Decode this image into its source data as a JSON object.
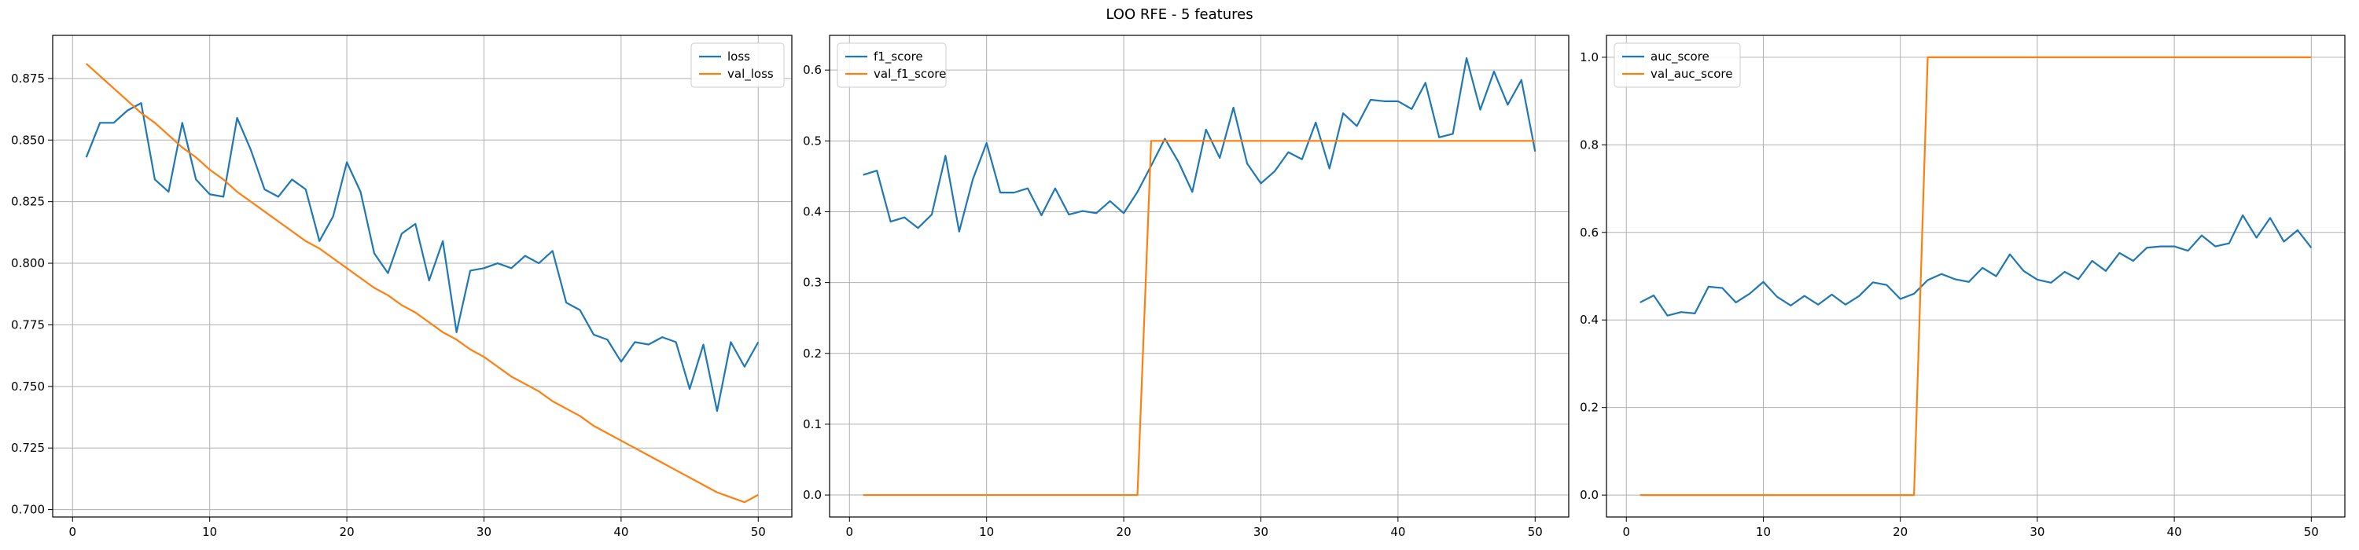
{
  "figure": {
    "title": "LOO RFE - 5 features"
  },
  "colors": {
    "blue": "#1f77b4",
    "orange": "#ff7f0e",
    "grid": "#b0b0b0",
    "axis": "#000000"
  },
  "chart_data": [
    {
      "type": "line",
      "title": "",
      "xlabel": "",
      "ylabel": "",
      "xlim": [
        -1.45,
        52.45
      ],
      "ylim": [
        0.697,
        0.8925
      ],
      "xticks": [
        0,
        10,
        20,
        30,
        40,
        50
      ],
      "yticks": [
        0.7,
        0.725,
        0.75,
        0.775,
        0.8,
        0.825,
        0.85,
        0.875
      ],
      "ytick_decimals": 3,
      "grid": true,
      "legend_position": "upper right",
      "x": [
        1,
        2,
        3,
        4,
        5,
        6,
        7,
        8,
        9,
        10,
        11,
        12,
        13,
        14,
        15,
        16,
        17,
        18,
        19,
        20,
        21,
        22,
        23,
        24,
        25,
        26,
        27,
        28,
        29,
        30,
        31,
        32,
        33,
        34,
        35,
        36,
        37,
        38,
        39,
        40,
        41,
        42,
        43,
        44,
        45,
        46,
        47,
        48,
        49,
        50
      ],
      "series": [
        {
          "name": "loss",
          "color": "#1f77b4",
          "values": [
            0.843,
            0.857,
            0.857,
            0.862,
            0.865,
            0.834,
            0.829,
            0.857,
            0.834,
            0.828,
            0.827,
            0.859,
            0.846,
            0.83,
            0.827,
            0.834,
            0.83,
            0.809,
            0.819,
            0.841,
            0.829,
            0.804,
            0.796,
            0.812,
            0.816,
            0.793,
            0.809,
            0.772,
            0.797,
            0.798,
            0.8,
            0.798,
            0.803,
            0.8,
            0.805,
            0.784,
            0.781,
            0.771,
            0.769,
            0.76,
            0.768,
            0.767,
            0.77,
            0.768,
            0.749,
            0.767,
            0.74,
            0.768,
            0.758,
            0.768
          ]
        },
        {
          "name": "val_loss",
          "color": "#ff7f0e",
          "values": [
            0.881,
            0.876,
            0.871,
            0.866,
            0.861,
            0.857,
            0.852,
            0.847,
            0.843,
            0.838,
            0.834,
            0.829,
            0.825,
            0.821,
            0.817,
            0.813,
            0.809,
            0.806,
            0.802,
            0.798,
            0.794,
            0.79,
            0.787,
            0.783,
            0.78,
            0.776,
            0.772,
            0.769,
            0.765,
            0.762,
            0.758,
            0.754,
            0.751,
            0.748,
            0.744,
            0.741,
            0.738,
            0.734,
            0.731,
            0.728,
            0.725,
            0.722,
            0.719,
            0.716,
            0.713,
            0.71,
            0.707,
            0.705,
            0.703,
            0.706
          ]
        }
      ]
    },
    {
      "type": "line",
      "title": "",
      "xlabel": "",
      "ylabel": "",
      "xlim": [
        -1.45,
        52.45
      ],
      "ylim": [
        -0.031,
        0.649
      ],
      "xticks": [
        0,
        10,
        20,
        30,
        40,
        50
      ],
      "yticks": [
        0.0,
        0.1,
        0.2,
        0.3,
        0.4,
        0.5,
        0.6
      ],
      "ytick_decimals": 1,
      "grid": true,
      "legend_position": "upper left",
      "x": [
        1,
        2,
        3,
        4,
        5,
        6,
        7,
        8,
        9,
        10,
        11,
        12,
        13,
        14,
        15,
        16,
        17,
        18,
        19,
        20,
        21,
        22,
        23,
        24,
        25,
        26,
        27,
        28,
        29,
        30,
        31,
        32,
        33,
        34,
        35,
        36,
        37,
        38,
        39,
        40,
        41,
        42,
        43,
        44,
        45,
        46,
        47,
        48,
        49,
        50
      ],
      "series": [
        {
          "name": "f1_score",
          "color": "#1f77b4",
          "values": [
            0.452,
            0.458,
            0.386,
            0.392,
            0.377,
            0.396,
            0.479,
            0.372,
            0.446,
            0.497,
            0.427,
            0.427,
            0.433,
            0.395,
            0.433,
            0.396,
            0.401,
            0.398,
            0.415,
            0.398,
            0.428,
            0.465,
            0.503,
            0.47,
            0.428,
            0.516,
            0.476,
            0.547,
            0.468,
            0.44,
            0.457,
            0.484,
            0.474,
            0.526,
            0.461,
            0.539,
            0.521,
            0.558,
            0.556,
            0.556,
            0.545,
            0.582,
            0.505,
            0.51,
            0.617,
            0.544,
            0.598,
            0.551,
            0.586,
            0.485
          ]
        },
        {
          "name": "val_f1_score",
          "color": "#ff7f0e",
          "values": [
            0,
            0,
            0,
            0,
            0,
            0,
            0,
            0,
            0,
            0,
            0,
            0,
            0,
            0,
            0,
            0,
            0,
            0,
            0,
            0,
            0,
            0.5,
            0.5,
            0.5,
            0.5,
            0.5,
            0.5,
            0.5,
            0.5,
            0.5,
            0.5,
            0.5,
            0.5,
            0.5,
            0.5,
            0.5,
            0.5,
            0.5,
            0.5,
            0.5,
            0.5,
            0.5,
            0.5,
            0.5,
            0.5,
            0.5,
            0.5,
            0.5,
            0.5,
            0.5
          ]
        }
      ]
    },
    {
      "type": "line",
      "title": "",
      "xlabel": "",
      "ylabel": "",
      "xlim": [
        -1.45,
        52.45
      ],
      "ylim": [
        -0.05,
        1.05
      ],
      "xticks": [
        0,
        10,
        20,
        30,
        40,
        50
      ],
      "yticks": [
        0.0,
        0.2,
        0.4,
        0.6,
        0.8,
        1.0
      ],
      "ytick_decimals": 1,
      "grid": true,
      "legend_position": "upper left",
      "x": [
        1,
        2,
        3,
        4,
        5,
        6,
        7,
        8,
        9,
        10,
        11,
        12,
        13,
        14,
        15,
        16,
        17,
        18,
        19,
        20,
        21,
        22,
        23,
        24,
        25,
        26,
        27,
        28,
        29,
        30,
        31,
        32,
        33,
        34,
        35,
        36,
        37,
        38,
        39,
        40,
        41,
        42,
        43,
        44,
        45,
        46,
        47,
        48,
        49,
        50
      ],
      "series": [
        {
          "name": "auc_score",
          "color": "#1f77b4",
          "values": [
            0.44,
            0.456,
            0.41,
            0.418,
            0.415,
            0.476,
            0.473,
            0.44,
            0.46,
            0.487,
            0.453,
            0.433,
            0.455,
            0.435,
            0.458,
            0.435,
            0.455,
            0.486,
            0.48,
            0.448,
            0.46,
            0.491,
            0.505,
            0.493,
            0.487,
            0.519,
            0.5,
            0.55,
            0.512,
            0.492,
            0.485,
            0.51,
            0.493,
            0.535,
            0.512,
            0.553,
            0.535,
            0.565,
            0.568,
            0.568,
            0.558,
            0.593,
            0.568,
            0.575,
            0.639,
            0.588,
            0.633,
            0.579,
            0.605,
            0.565
          ]
        },
        {
          "name": "val_auc_score",
          "color": "#ff7f0e",
          "values": [
            0,
            0,
            0,
            0,
            0,
            0,
            0,
            0,
            0,
            0,
            0,
            0,
            0,
            0,
            0,
            0,
            0,
            0,
            0,
            0,
            0,
            1,
            1,
            1,
            1,
            1,
            1,
            1,
            1,
            1,
            1,
            1,
            1,
            1,
            1,
            1,
            1,
            1,
            1,
            1,
            1,
            1,
            1,
            1,
            1,
            1,
            1,
            1,
            1,
            1
          ]
        }
      ]
    }
  ]
}
